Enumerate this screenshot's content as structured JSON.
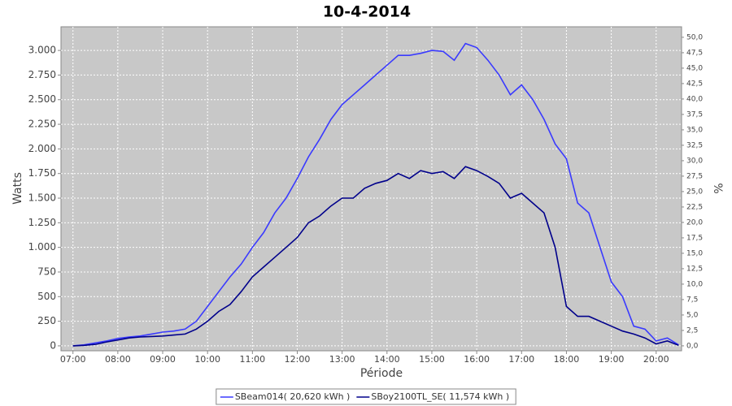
{
  "chart_data": {
    "type": "line",
    "title": "10-4-2014",
    "x_label": "Période",
    "y_label": "Watts",
    "y2_label": "%",
    "x": [
      "07:00",
      "07:15",
      "07:30",
      "07:45",
      "08:00",
      "08:15",
      "08:30",
      "08:45",
      "09:00",
      "09:15",
      "09:30",
      "09:45",
      "10:00",
      "10:15",
      "10:30",
      "10:45",
      "11:00",
      "11:15",
      "11:30",
      "11:45",
      "12:00",
      "12:15",
      "12:30",
      "12:45",
      "13:00",
      "13:15",
      "13:30",
      "13:45",
      "14:00",
      "14:15",
      "14:30",
      "14:45",
      "15:00",
      "15:15",
      "15:30",
      "15:45",
      "16:00",
      "16:15",
      "16:30",
      "16:45",
      "17:00",
      "17:15",
      "17:30",
      "17:45",
      "18:00",
      "18:15",
      "18:30",
      "18:45",
      "19:00",
      "19:15",
      "19:30",
      "19:45",
      "20:00",
      "20:15",
      "20:30"
    ],
    "series": [
      {
        "name": "SBeam014( 20,620 kWh )",
        "color": "#3a3aff",
        "values": [
          0,
          10,
          30,
          50,
          75,
          90,
          100,
          120,
          140,
          150,
          170,
          250,
          400,
          550,
          700,
          830,
          1000,
          1150,
          1350,
          1500,
          1700,
          1920,
          2100,
          2300,
          2450,
          2550,
          2650,
          2750,
          2850,
          2950,
          2950,
          2970,
          3000,
          2990,
          2900,
          3070,
          3030,
          2900,
          2750,
          2550,
          2650,
          2500,
          2300,
          2050,
          1900,
          1450,
          1350,
          1000,
          650,
          500,
          200,
          170,
          50,
          80,
          10
        ]
      },
      {
        "name": "SBoy2100TL_SE( 11,574 kWh )",
        "color": "#00008b",
        "values": [
          0,
          5,
          15,
          40,
          60,
          80,
          90,
          95,
          100,
          110,
          120,
          170,
          250,
          350,
          420,
          550,
          700,
          800,
          900,
          1000,
          1100,
          1250,
          1320,
          1420,
          1500,
          1500,
          1600,
          1650,
          1680,
          1750,
          1700,
          1780,
          1750,
          1770,
          1700,
          1820,
          1780,
          1720,
          1650,
          1500,
          1550,
          1450,
          1350,
          1000,
          400,
          300,
          300,
          250,
          200,
          150,
          120,
          80,
          20,
          50,
          5
        ]
      }
    ],
    "xlim": [
      "06:44",
      "20:34"
    ],
    "xticks": [
      "07:00",
      "08:00",
      "09:00",
      "10:00",
      "11:00",
      "12:00",
      "13:00",
      "14:00",
      "15:00",
      "16:00",
      "17:00",
      "18:00",
      "19:00",
      "20:00"
    ],
    "ylim": [
      -50,
      3240
    ],
    "yticks": [
      0,
      250,
      500,
      750,
      {
        "value": 1000,
        "label": "1.000"
      },
      {
        "value": 1250,
        "label": "1.250"
      },
      {
        "value": 1500,
        "label": "1.500"
      },
      {
        "value": 1750,
        "label": "1.750"
      },
      {
        "value": 2000,
        "label": "2.000"
      },
      {
        "value": 2250,
        "label": "2.250"
      },
      {
        "value": 2500,
        "label": "2.500"
      },
      {
        "value": 2750,
        "label": "2.750"
      },
      {
        "value": 3000,
        "label": "3.000"
      }
    ],
    "y2lim": [
      -0.8,
      51.7
    ],
    "y2ticks": [
      {
        "value": 0,
        "label": "0,0"
      },
      {
        "value": 2.5,
        "label": "2,5"
      },
      {
        "value": 5,
        "label": "5,0"
      },
      {
        "value": 7.5,
        "label": "7,5"
      },
      {
        "value": 10,
        "label": "10,0"
      },
      {
        "value": 12.5,
        "label": "12,5"
      },
      {
        "value": 15,
        "label": "15,0"
      },
      {
        "value": 17.5,
        "label": "17,5"
      },
      {
        "value": 20,
        "label": "20,0"
      },
      {
        "value": 22.5,
        "label": "22,5"
      },
      {
        "value": 25,
        "label": "25,0"
      },
      {
        "value": 27.5,
        "label": "27,5"
      },
      {
        "value": 30,
        "label": "30,0"
      },
      {
        "value": 32.5,
        "label": "32,5"
      },
      {
        "value": 35,
        "label": "35,0"
      },
      {
        "value": 37.5,
        "label": "37,5"
      },
      {
        "value": 40,
        "label": "40,0"
      },
      {
        "value": 42.5,
        "label": "42,5"
      },
      {
        "value": 45,
        "label": "45,0"
      },
      {
        "value": 47.5,
        "label": "47,5"
      },
      {
        "value": 50,
        "label": "50,0"
      }
    ],
    "grid": true,
    "legend": "bottom",
    "plot_background": "#c8c8c8"
  }
}
